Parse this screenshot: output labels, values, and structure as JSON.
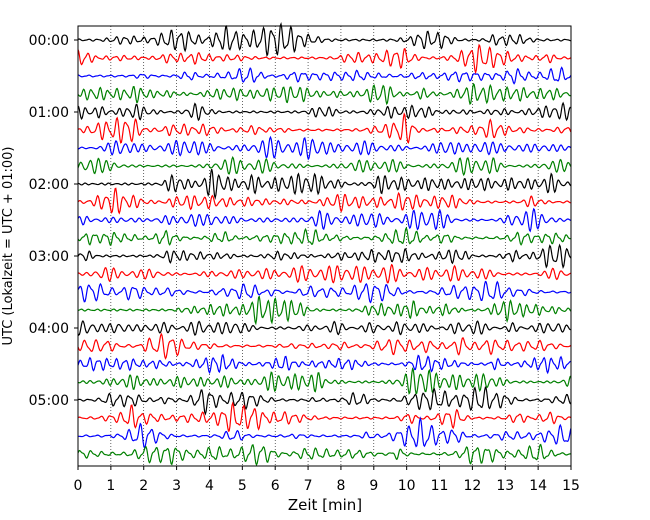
{
  "chart_data": {
    "type": "line",
    "title": "",
    "xlabel": "Zeit  [min]",
    "ylabel": "UTC (Lokalzeit = UTC + 01:00)",
    "xlim": [
      0,
      15
    ],
    "x_ticks": [
      "0",
      "1",
      "2",
      "3",
      "4",
      "5",
      "6",
      "7",
      "8",
      "9",
      "10",
      "11",
      "12",
      "13",
      "14",
      "15"
    ],
    "y_ticks": [
      "00:00",
      "01:00",
      "02:00",
      "03:00",
      "04:00",
      "05:00"
    ],
    "trace_interval_minutes": 15,
    "trace_count": 24,
    "trace_colors": [
      "#000000",
      "#ff0000",
      "#0000ff",
      "#008000"
    ],
    "grid": "vertical dotted lines at each minute"
  }
}
